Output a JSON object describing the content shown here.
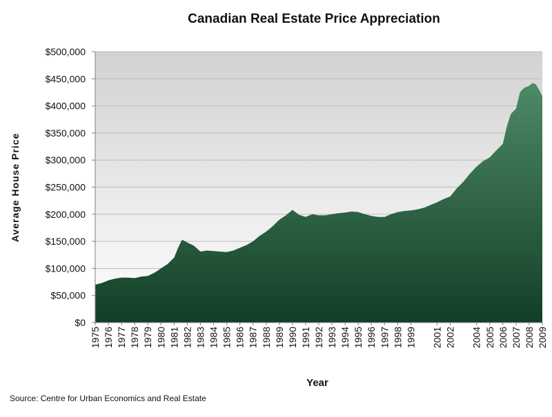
{
  "chart_data": {
    "type": "area",
    "title": "Canadian Real Estate Price Appreciation",
    "xlabel": "Year",
    "ylabel": "Average House Price",
    "source": "Source:  Centre for Urban Economics and Real Estate",
    "xlim": [
      1975,
      2009
    ],
    "ylim": [
      0,
      500000
    ],
    "grid": true,
    "y_ticks": [
      {
        "value": 0,
        "label": "$0"
      },
      {
        "value": 50000,
        "label": "$50,000"
      },
      {
        "value": 100000,
        "label": "$100,000"
      },
      {
        "value": 150000,
        "label": "$150,000"
      },
      {
        "value": 200000,
        "label": "$200,000"
      },
      {
        "value": 250000,
        "label": "$250,000"
      },
      {
        "value": 300000,
        "label": "$300,000"
      },
      {
        "value": 350000,
        "label": "$350,000"
      },
      {
        "value": 400000,
        "label": "$400,000"
      },
      {
        "value": 450000,
        "label": "$450,000"
      },
      {
        "value": 500000,
        "label": "$500,000"
      }
    ],
    "x_ticks": [
      {
        "value": 1975,
        "label": "1975"
      },
      {
        "value": 1976,
        "label": "1976"
      },
      {
        "value": 1977,
        "label": "1977"
      },
      {
        "value": 1978,
        "label": "1978"
      },
      {
        "value": 1979,
        "label": "1979"
      },
      {
        "value": 1980,
        "label": "1980"
      },
      {
        "value": 1981,
        "label": "1981"
      },
      {
        "value": 1982,
        "label": "1982"
      },
      {
        "value": 1983,
        "label": "1983"
      },
      {
        "value": 1984,
        "label": "1984"
      },
      {
        "value": 1985,
        "label": "1985"
      },
      {
        "value": 1986,
        "label": "1986"
      },
      {
        "value": 1987,
        "label": "1987"
      },
      {
        "value": 1988,
        "label": "1988"
      },
      {
        "value": 1989,
        "label": "1989"
      },
      {
        "value": 1990,
        "label": "1990"
      },
      {
        "value": 1991,
        "label": "1991"
      },
      {
        "value": 1992,
        "label": "1992"
      },
      {
        "value": 1993,
        "label": "1993"
      },
      {
        "value": 1994,
        "label": "1994"
      },
      {
        "value": 1995,
        "label": "1995"
      },
      {
        "value": 1996,
        "label": "1996"
      },
      {
        "value": 1997,
        "label": "1997"
      },
      {
        "value": 1998,
        "label": "1998"
      },
      {
        "value": 1999,
        "label": "1999"
      },
      {
        "value": 2001,
        "label": "2001"
      },
      {
        "value": 2002,
        "label": "2002"
      },
      {
        "value": 2004,
        "label": "2004"
      },
      {
        "value": 2005,
        "label": "2005"
      },
      {
        "value": 2006,
        "label": "2006"
      },
      {
        "value": 2007,
        "label": "2007"
      },
      {
        "value": 2008,
        "label": "2008"
      },
      {
        "value": 2009,
        "label": "2009"
      }
    ],
    "series": [
      {
        "name": "Average House Price",
        "x": [
          1975,
          1975.5,
          1976,
          1976.5,
          1977,
          1977.5,
          1978,
          1978.5,
          1979,
          1979.5,
          1980,
          1980.5,
          1981,
          1981.3,
          1981.6,
          1982,
          1982.5,
          1983,
          1983.5,
          1984,
          1984.5,
          1985,
          1985.5,
          1986,
          1986.5,
          1987,
          1987.5,
          1988,
          1988.5,
          1989,
          1989.5,
          1990,
          1990.5,
          1991,
          1991.5,
          1992,
          1992.5,
          1993,
          1993.5,
          1994,
          1994.5,
          1995,
          1995.5,
          1996,
          1996.5,
          1997,
          1997.5,
          1998,
          1998.5,
          1999,
          1999.5,
          2000,
          2000.5,
          2001,
          2001.5,
          2002,
          2002.5,
          2003,
          2003.5,
          2004,
          2004.5,
          2005,
          2005.5,
          2006,
          2006.3,
          2006.6,
          2007,
          2007.3,
          2007.6,
          2008,
          2008.25,
          2008.5,
          2008.75,
          2009
        ],
        "values": [
          70000,
          73000,
          78000,
          81000,
          83000,
          83000,
          82000,
          85000,
          86000,
          92000,
          100000,
          108000,
          120000,
          138000,
          153000,
          148000,
          142000,
          131000,
          133000,
          132000,
          131000,
          130000,
          133000,
          138000,
          143000,
          150000,
          160000,
          168000,
          178000,
          190000,
          198000,
          208000,
          199000,
          195000,
          200000,
          198000,
          198000,
          200000,
          202000,
          203000,
          205000,
          204000,
          200000,
          197000,
          195000,
          195000,
          200000,
          204000,
          206000,
          207000,
          209000,
          212000,
          217000,
          222000,
          228000,
          233000,
          248000,
          260000,
          275000,
          288000,
          298000,
          305000,
          318000,
          330000,
          362000,
          385000,
          395000,
          425000,
          433000,
          437000,
          442000,
          440000,
          430000,
          418000
        ]
      }
    ]
  },
  "colors": {
    "area_top": "#4d8a66",
    "area_bottom": "#123f26",
    "plot_bg_top": "#d2d2d2",
    "plot_bg_bottom": "#ffffff",
    "grid": "#bbbbbb",
    "axis": "#808080"
  }
}
